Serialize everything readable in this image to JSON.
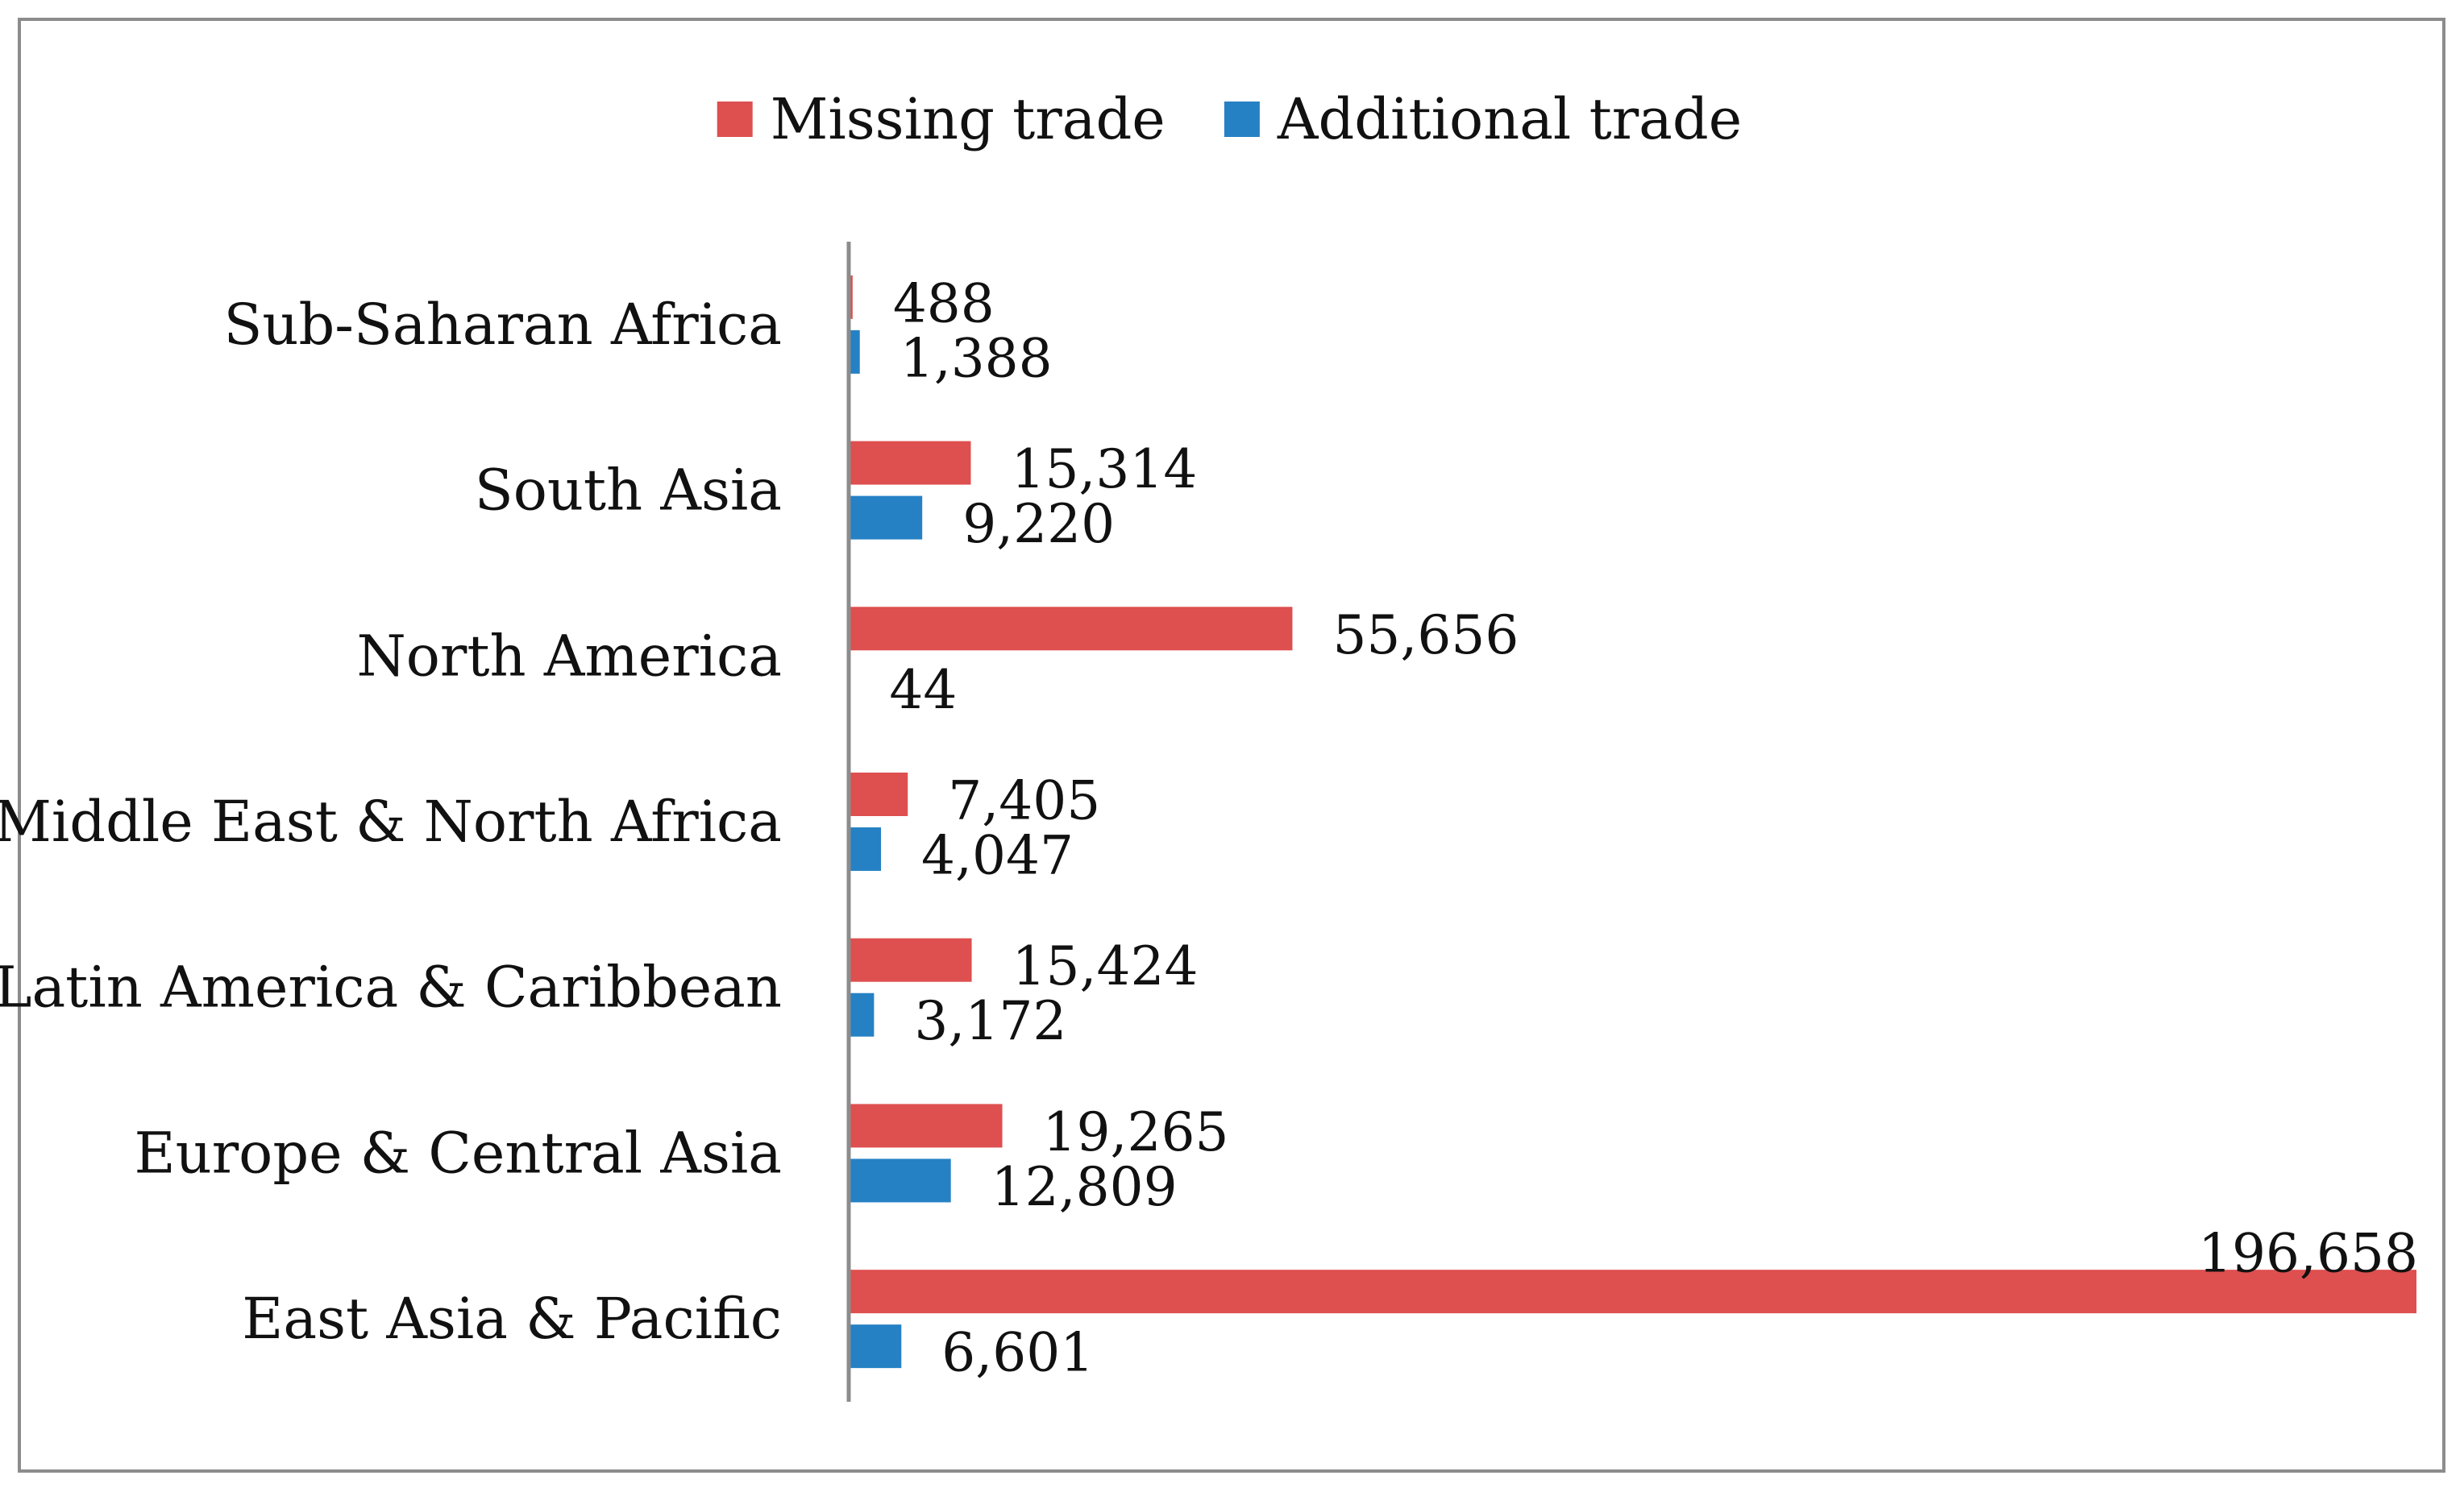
{
  "chart_data": {
    "type": "bar",
    "orientation": "horizontal",
    "title": "",
    "xlabel": "",
    "ylabel": "",
    "categories": [
      "Sub-Saharan Africa",
      "South Asia",
      "North America",
      "Middle East & North Africa",
      "Latin America & Caribbean",
      "Europe & Central Asia",
      "East Asia & Pacific"
    ],
    "series": [
      {
        "name": "Missing trade",
        "color": "#de4f4f",
        "values": [
          488,
          15314,
          55656,
          7405,
          15424,
          19265,
          196658
        ],
        "labels": [
          "488",
          "15,314",
          "55,656",
          "7,405",
          "15,424",
          "19,265",
          "196,658"
        ]
      },
      {
        "name": "Additional trade",
        "color": "#2581c4",
        "values": [
          1388,
          9220,
          44,
          4047,
          3172,
          12809,
          6601
        ],
        "labels": [
          "1,388",
          "9,220",
          "44",
          "4,047",
          "3,172",
          "12,809",
          "6,601"
        ]
      }
    ],
    "xlim": [
      0,
      196658
    ],
    "grid": false,
    "legend_position": "top-center",
    "axis_color": "#8c8c8c"
  }
}
